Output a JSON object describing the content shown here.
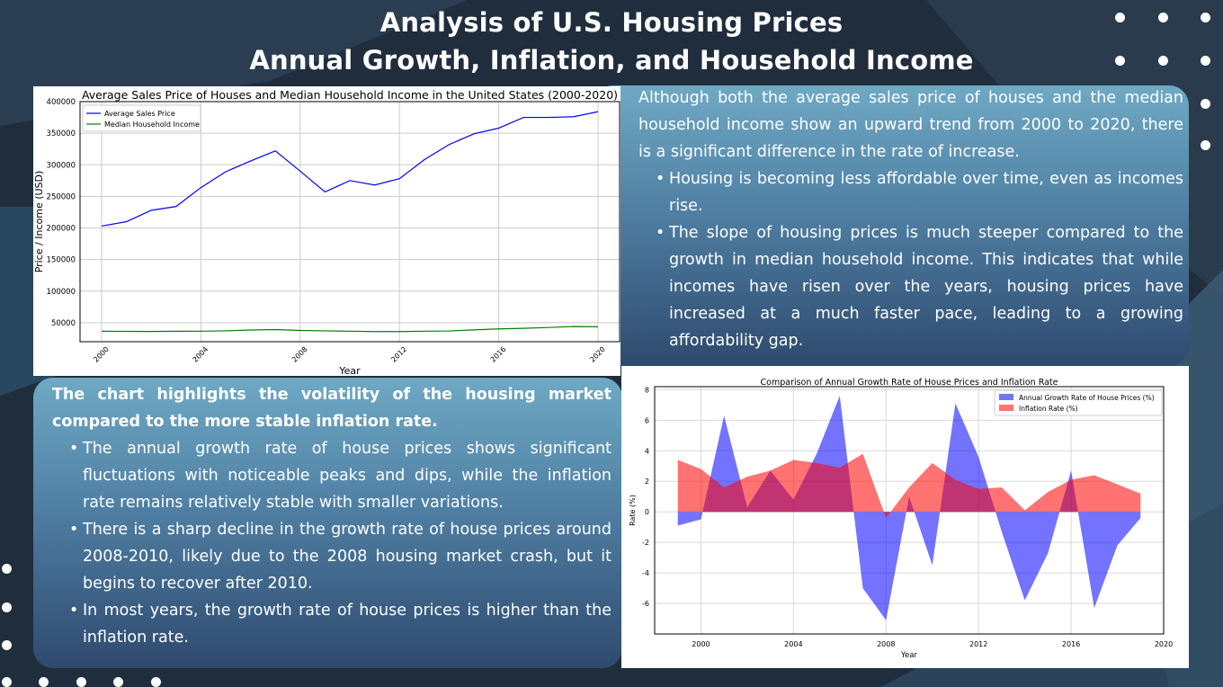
{
  "header": {
    "line1": "Analysis of U.S. Housing Prices",
    "line2": "Annual Growth, Inflation, and Household Income"
  },
  "text_top": {
    "lead": "Although both the average sales price of houses and the median household income show an upward trend from 2000 to 2020, there is a significant difference in the rate of increase.",
    "bullets": [
      "Housing is becoming less affordable over time, even as incomes rise.",
      "The slope of housing prices is much steeper compared to the growth in median household income. This indicates that while incomes have risen over the years, housing prices have increased at a much faster pace, leading to a growing affordability gap."
    ]
  },
  "text_bottom": {
    "lead": "The chart highlights the volatility of the housing market compared to the more stable inflation rate.",
    "bullets": [
      "The annual growth rate of house prices shows significant fluctuations with noticeable peaks and dips, while the inflation rate remains relatively stable with smaller variations.",
      "There is a sharp decline in the growth rate of house prices around 2008-2010, likely due to the 2008 housing market crash, but it begins to recover after 2010.",
      "In most years, the growth rate of house prices is higher than the inflation rate."
    ]
  },
  "chart_data": [
    {
      "type": "line",
      "title": "Average Sales Price of Houses and Median Household Income in the United States (2000-2020)",
      "xlabel": "Year",
      "ylabel": "Price / Income (USD)",
      "xlim": [
        2000,
        2020
      ],
      "ylim": [
        20000,
        400000
      ],
      "xticks": [
        2000,
        2004,
        2008,
        2012,
        2016,
        2020
      ],
      "yticks": [
        50000,
        100000,
        150000,
        200000,
        250000,
        300000,
        350000,
        400000
      ],
      "legend_position": "top-left",
      "grid": true,
      "x": [
        2000,
        2001,
        2002,
        2003,
        2004,
        2005,
        2006,
        2007,
        2008,
        2009,
        2010,
        2011,
        2012,
        2013,
        2014,
        2015,
        2016,
        2017,
        2018,
        2019,
        2020
      ],
      "series": [
        {
          "name": "Average Sales Price",
          "color": "#0000ff",
          "values": [
            203000,
            210000,
            228000,
            234000,
            264000,
            289000,
            306000,
            322000,
            290000,
            257000,
            275000,
            268000,
            278000,
            308000,
            332000,
            349000,
            358000,
            375000,
            375000,
            376000,
            384000
          ]
        },
        {
          "name": "Median Household Income",
          "color": "#008000",
          "values": [
            36500,
            36400,
            36200,
            36500,
            36600,
            37200,
            38500,
            39200,
            37800,
            37200,
            36600,
            36000,
            36000,
            36600,
            37000,
            38700,
            40300,
            41200,
            42500,
            44000,
            43700
          ]
        }
      ]
    },
    {
      "type": "area",
      "title": "Comparison of Annual Growth Rate of House Prices and Inflation Rate",
      "xlabel": "Year",
      "ylabel": "Rate (%)",
      "xlim": [
        1998,
        2020
      ],
      "ylim": [
        -8,
        8.2
      ],
      "xticks": [
        2000,
        2004,
        2008,
        2012,
        2016,
        2020
      ],
      "yticks": [
        -6,
        -4,
        -2,
        0,
        2,
        4,
        6,
        8
      ],
      "legend_position": "top-right",
      "grid": true,
      "x": [
        1999,
        2000,
        2001,
        2002,
        2003,
        2004,
        2005,
        2006,
        2007,
        2008,
        2009,
        2010,
        2011,
        2012,
        2013,
        2014,
        2015,
        2016,
        2017,
        2018,
        2019
      ],
      "series": [
        {
          "name": "Annual Growth Rate of House Prices (%)",
          "color": "#0000ff",
          "values": [
            -0.9,
            -0.5,
            6.3,
            0.3,
            2.7,
            0.8,
            3.8,
            7.6,
            -5.0,
            -7.1,
            1.0,
            -3.5,
            7.1,
            3.6,
            -1.3,
            -5.8,
            -2.7,
            2.7,
            -6.3,
            -2.2,
            -0.4
          ]
        },
        {
          "name": "Inflation Rate (%)",
          "color": "#ff0000",
          "values": [
            3.4,
            2.8,
            1.6,
            2.3,
            2.7,
            3.4,
            3.2,
            2.9,
            3.8,
            -0.4,
            1.6,
            3.2,
            2.1,
            1.5,
            1.6,
            0.1,
            1.3,
            2.1,
            2.4,
            1.8,
            1.2
          ]
        }
      ]
    }
  ]
}
